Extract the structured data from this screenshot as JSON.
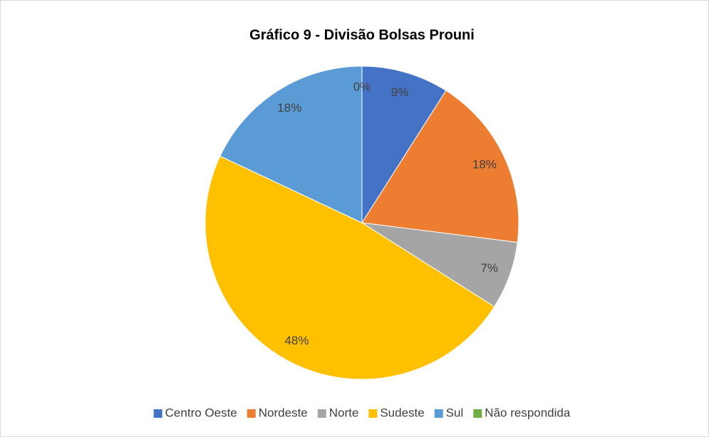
{
  "chart_data": {
    "type": "pie",
    "title": "Gráfico 9 - Divisão Bolsas Prouni",
    "categories": [
      "Centro Oeste",
      "Nordeste",
      "Norte",
      "Sudeste",
      "Sul",
      "Não respondida"
    ],
    "values": [
      9,
      18,
      7,
      48,
      18,
      0
    ],
    "value_labels": [
      "9%",
      "18%",
      "7%",
      "48%",
      "18%",
      "0%"
    ],
    "colors": [
      "#4472c4",
      "#ed7d31",
      "#a5a5a5",
      "#ffc000",
      "#5b9bd5",
      "#70ad47"
    ],
    "legend": "bottom"
  }
}
